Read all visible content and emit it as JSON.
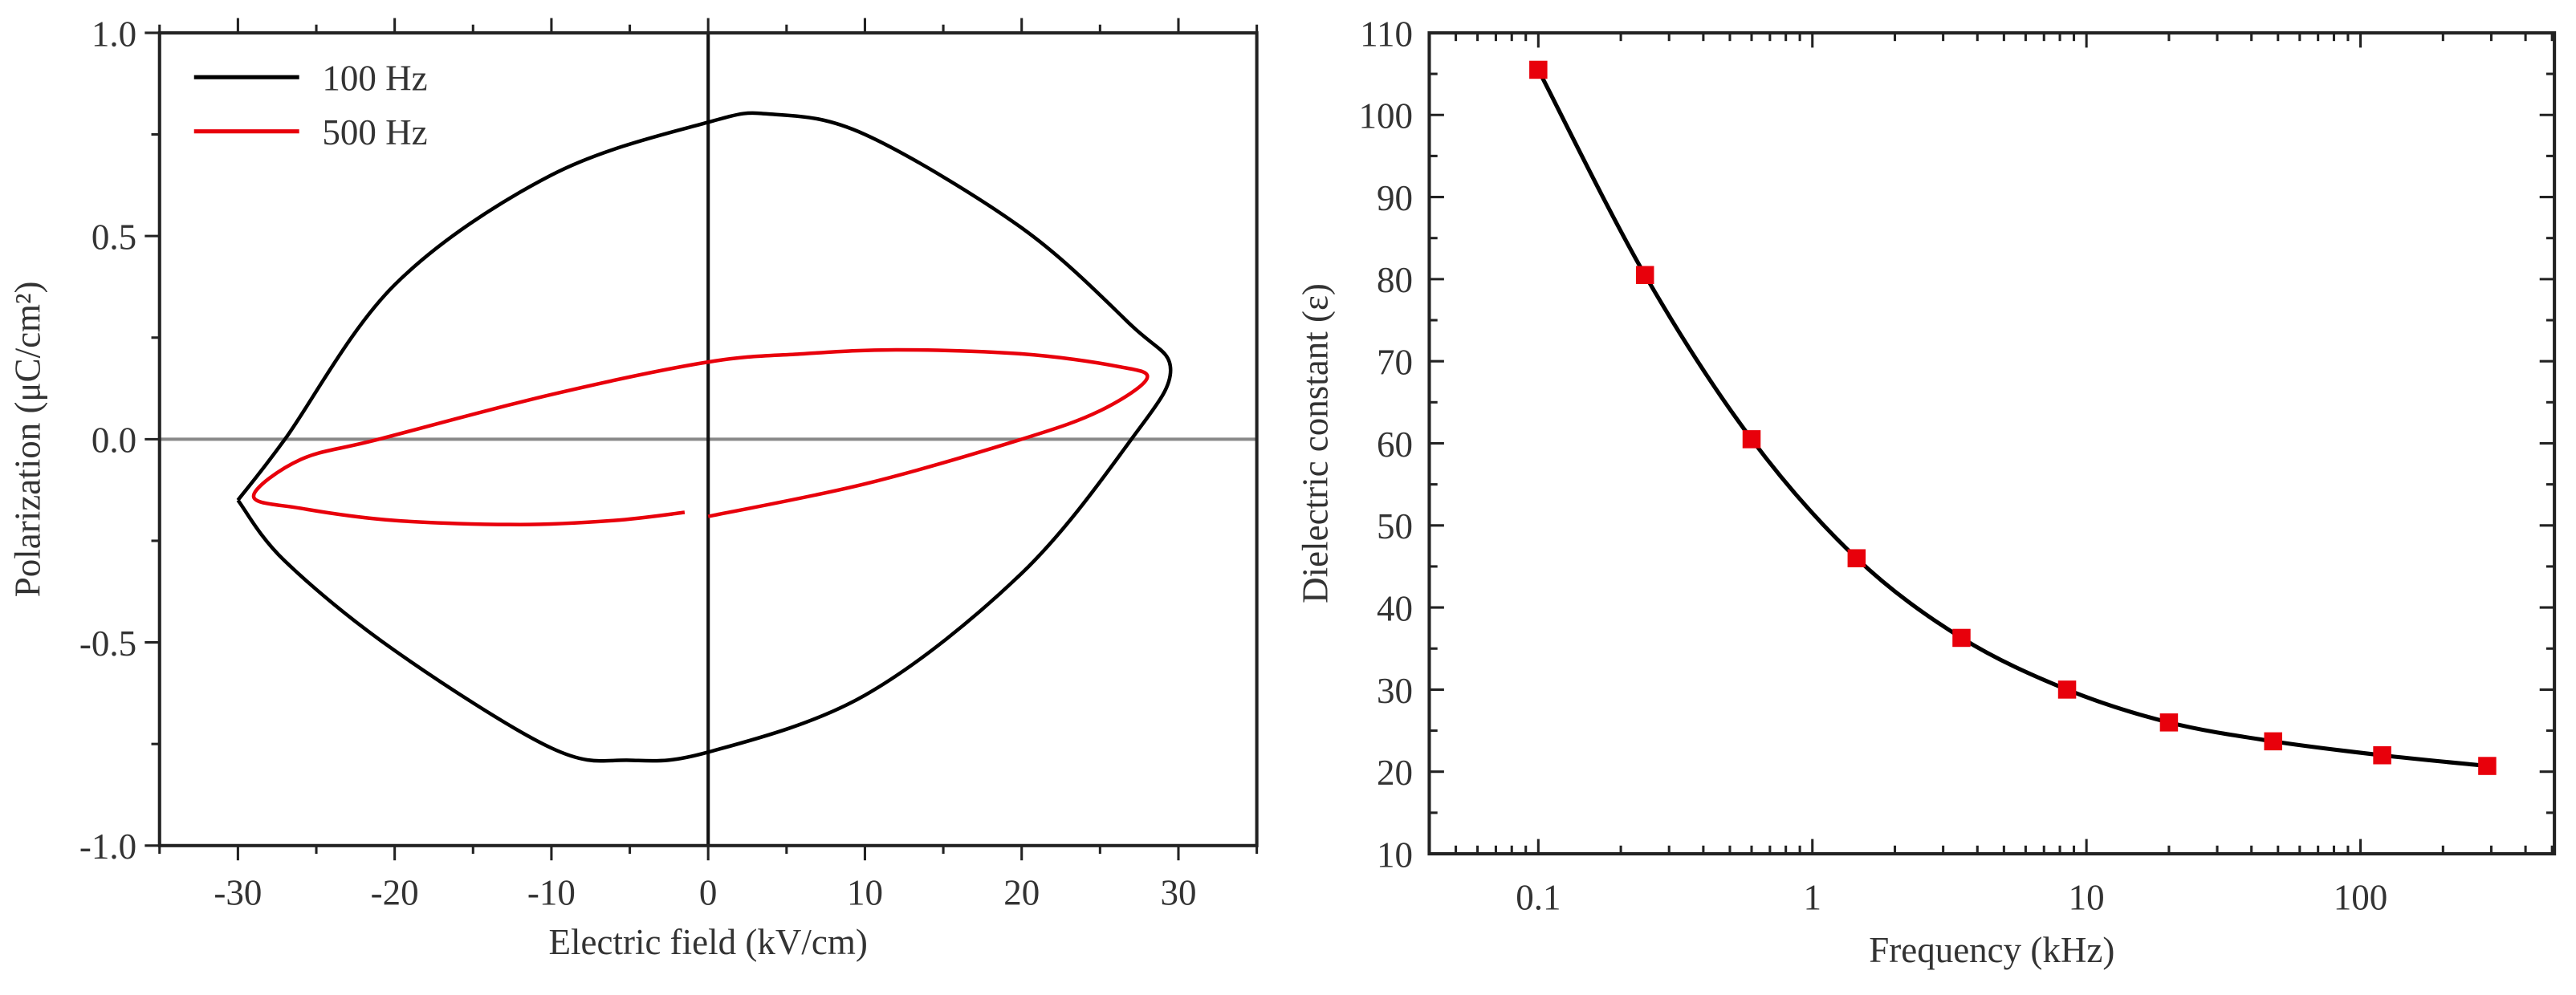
{
  "chart_data": [
    {
      "type": "line",
      "title": "",
      "xlabel": "Electric field (kV/cm)",
      "ylabel": "Polarization (μC/cm²)",
      "xlim": [
        -35,
        35
      ],
      "ylim": [
        -1.0,
        1.0
      ],
      "xticks": [
        "-30",
        "-20",
        "-10",
        "0",
        "10",
        "20",
        "30"
      ],
      "xtick_values": [
        -30,
        -20,
        -10,
        0,
        10,
        20,
        30
      ],
      "yticks": [
        "-1.0",
        "-0.5",
        "0.0",
        "0.5",
        "1.0"
      ],
      "ytick_values": [
        -1.0,
        -0.5,
        0.0,
        0.5,
        1.0
      ],
      "grid": false,
      "legend_position": "top-left",
      "series": [
        {
          "name": "100 Hz",
          "color": "#000000",
          "x": [
            -30,
            -27,
            -20,
            -10,
            0,
            4,
            10,
            20,
            27,
            29.5,
            27,
            20,
            10,
            0,
            -5,
            -10,
            -20,
            -27,
            -30
          ],
          "y": [
            -0.15,
            0.0,
            0.38,
            0.65,
            0.78,
            0.8,
            0.75,
            0.52,
            0.28,
            0.17,
            0.0,
            -0.33,
            -0.63,
            -0.77,
            -0.79,
            -0.76,
            -0.52,
            -0.3,
            -0.15
          ]
        },
        {
          "name": "500 Hz",
          "color": "#e8000b",
          "x": [
            -1.5,
            -6,
            -12,
            -20,
            -26,
            -29,
            -26,
            -21,
            -10,
            0,
            6,
            12,
            20,
            26,
            28,
            25,
            20,
            10,
            0
          ],
          "y": [
            -0.18,
            -0.2,
            -0.21,
            -0.2,
            -0.17,
            -0.14,
            -0.05,
            0.0,
            0.11,
            0.19,
            0.21,
            0.22,
            0.21,
            0.18,
            0.15,
            0.07,
            0.0,
            -0.11,
            -0.19
          ]
        }
      ]
    },
    {
      "type": "line",
      "title": "",
      "xlabel": "Frequency (kHz)",
      "ylabel": "Dielectric constant (ε)",
      "xscale": "log",
      "xlim": [
        0.04,
        510
      ],
      "ylim": [
        10,
        110
      ],
      "xticks": [
        "0.1",
        "1",
        "10",
        "100"
      ],
      "xtick_values": [
        0.1,
        1,
        10,
        100
      ],
      "yticks": [
        "10",
        "20",
        "30",
        "40",
        "50",
        "60",
        "70",
        "80",
        "90",
        "100",
        "110"
      ],
      "ytick_values": [
        10,
        20,
        30,
        40,
        50,
        60,
        70,
        80,
        90,
        100,
        110
      ],
      "grid": false,
      "series": [
        {
          "name": "Dielectric constant",
          "line_color": "#000000",
          "marker_color": "#e8000b",
          "marker": "square",
          "x": [
            0.1,
            0.245,
            0.6,
            1.45,
            3.5,
            8.5,
            20,
            48,
            120,
            290
          ],
          "y": [
            105.5,
            80.5,
            60.5,
            46,
            36.3,
            30,
            26,
            23.7,
            22,
            20.7
          ]
        }
      ]
    }
  ]
}
